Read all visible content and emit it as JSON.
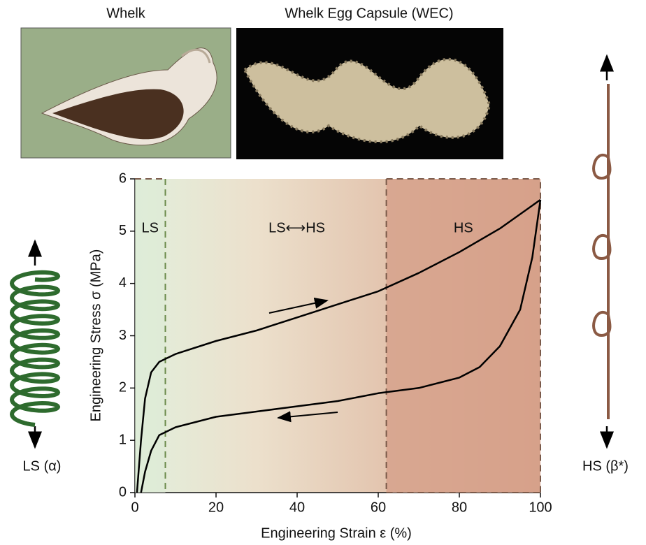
{
  "chart_data": {
    "type": "line",
    "images": {
      "left": "Whelk",
      "right": "Whelk Egg Capsule (WEC)"
    },
    "side_labels": {
      "left": "LS (α)",
      "right": "HS (β*)"
    },
    "xlabel": "Engineering Strain ε (%)",
    "ylabel": "Engineering Stress σ (MPa)",
    "xlim": [
      0,
      100
    ],
    "ylim": [
      0,
      6
    ],
    "xticks": [
      0,
      20,
      40,
      60,
      80,
      100
    ],
    "yticks": [
      0,
      1,
      2,
      3,
      4,
      5,
      6
    ],
    "boundaries": [
      7.5,
      62
    ],
    "annotations": [
      "LS",
      "LS⟷HS",
      "HS"
    ],
    "series": [
      {
        "color": "#000000",
        "x": [
          0.5,
          1.5,
          2.5,
          4,
          6,
          10,
          20,
          30,
          40,
          50,
          60,
          70,
          80,
          90,
          100
        ],
        "values": [
          0,
          1,
          1.8,
          2.3,
          2.5,
          2.65,
          2.9,
          3.1,
          3.35,
          3.6,
          3.85,
          4.2,
          4.6,
          5.05,
          5.6
        ]
      },
      {
        "color": "#000000",
        "x": [
          100,
          98,
          95,
          90,
          85,
          80,
          70,
          60,
          50,
          40,
          30,
          20,
          10,
          6,
          4,
          2.5,
          1.5
        ],
        "values": [
          5.6,
          4.5,
          3.5,
          2.8,
          2.4,
          2.2,
          2.0,
          1.9,
          1.75,
          1.65,
          1.55,
          1.45,
          1.25,
          1.1,
          0.8,
          0.4,
          0
        ]
      }
    ]
  }
}
